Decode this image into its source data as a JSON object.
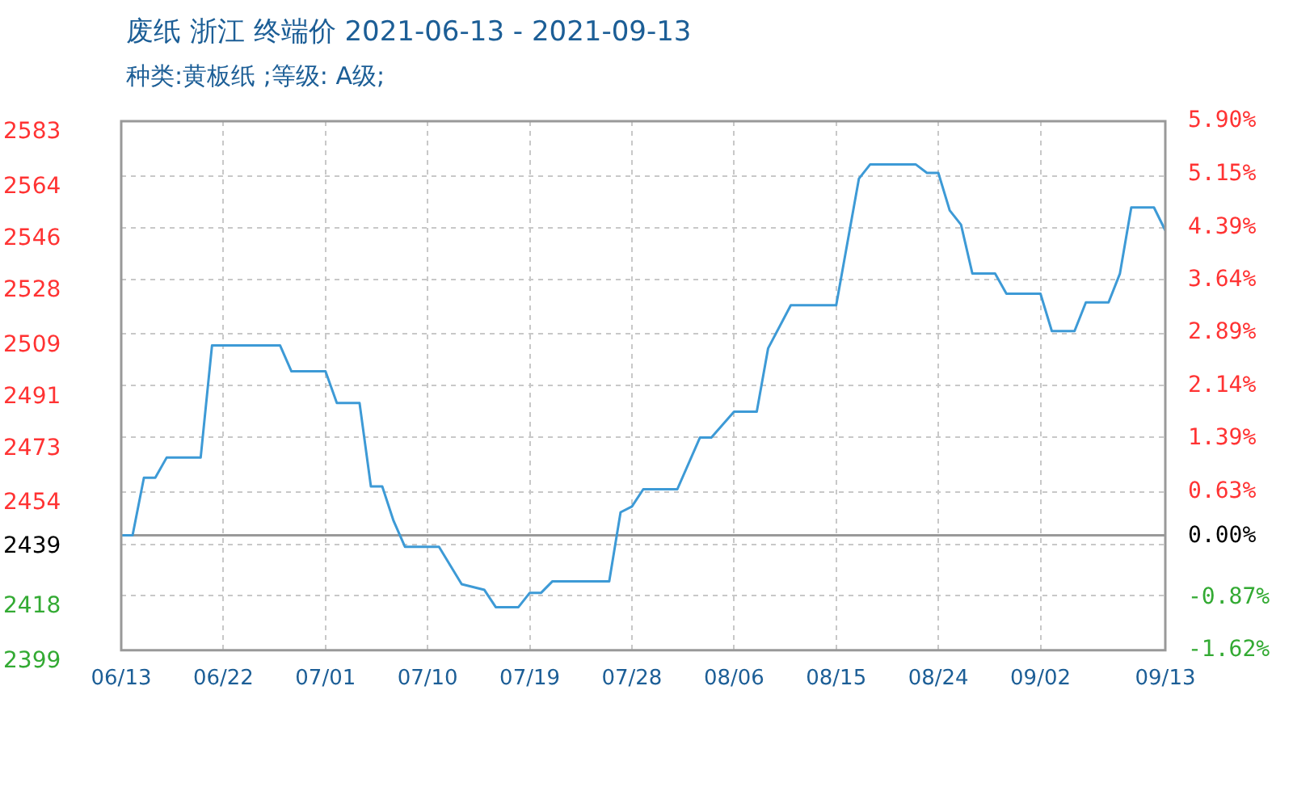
{
  "chart_data": {
    "type": "line",
    "title": "废纸 浙江 终端价 2021-06-13 - 2021-09-13",
    "subtitle": "种类:黄板纸 ;等级: A级;",
    "x": [
      "2021-06-13",
      "2021-06-14",
      "2021-06-15",
      "2021-06-16",
      "2021-06-17",
      "2021-06-20",
      "2021-06-21",
      "2021-06-27",
      "2021-06-28",
      "2021-07-01",
      "2021-07-02",
      "2021-07-04",
      "2021-07-05",
      "2021-07-06",
      "2021-07-07",
      "2021-07-08",
      "2021-07-11",
      "2021-07-13",
      "2021-07-15",
      "2021-07-16",
      "2021-07-18",
      "2021-07-19",
      "2021-07-20",
      "2021-07-21",
      "2021-07-26",
      "2021-07-27",
      "2021-07-28",
      "2021-07-29",
      "2021-08-01",
      "2021-08-03",
      "2021-08-04",
      "2021-08-06",
      "2021-08-08",
      "2021-08-09",
      "2021-08-11",
      "2021-08-15",
      "2021-08-17",
      "2021-08-18",
      "2021-08-22",
      "2021-08-23",
      "2021-08-24",
      "2021-08-25",
      "2021-08-26",
      "2021-08-27",
      "2021-08-29",
      "2021-08-30",
      "2021-09-02",
      "2021-09-03",
      "2021-09-05",
      "2021-09-06",
      "2021-09-08",
      "2021-09-09",
      "2021-09-10",
      "2021-09-12",
      "2021-09-13"
    ],
    "series": [
      {
        "color": "#3d9ad6",
        "values": [
          2439,
          2439,
          2459,
          2459,
          2466,
          2466,
          2505,
          2505,
          2496,
          2496,
          2485,
          2485,
          2456,
          2456,
          2444,
          2435,
          2435,
          2422,
          2420,
          2414,
          2414,
          2419,
          2419,
          2423,
          2423,
          2447,
          2449,
          2455,
          2455,
          2473,
          2473,
          2482,
          2482,
          2504,
          2519,
          2519,
          2563,
          2568,
          2568,
          2565,
          2565,
          2552,
          2547,
          2530,
          2530,
          2523,
          2523,
          2510,
          2510,
          2520,
          2520,
          2530,
          2553,
          2553,
          2545
        ]
      }
    ],
    "xlim": [
      "2021-06-13",
      "2021-09-13"
    ],
    "xticks": [
      {
        "value": "2021-06-13",
        "label": "06/13"
      },
      {
        "value": "2021-06-22",
        "label": "06/22"
      },
      {
        "value": "2021-07-01",
        "label": "07/01"
      },
      {
        "value": "2021-07-10",
        "label": "07/10"
      },
      {
        "value": "2021-07-19",
        "label": "07/19"
      },
      {
        "value": "2021-07-28",
        "label": "07/28"
      },
      {
        "value": "2021-08-06",
        "label": "08/06"
      },
      {
        "value": "2021-08-15",
        "label": "08/15"
      },
      {
        "value": "2021-08-24",
        "label": "08/24"
      },
      {
        "value": "2021-09-02",
        "label": "09/02"
      },
      {
        "value": "2021-09-13",
        "label": "09/13"
      }
    ],
    "ylim": [
      2399,
      2583
    ],
    "yticks": [
      2399,
      2418,
      {
        "value": 2435.8,
        "label": null
      },
      2439,
      2454,
      2473,
      2491,
      2509,
      2528,
      2546,
      2564,
      2583
    ],
    "y2lim": [
      -1.62,
      5.9
    ],
    "y2ticks": [
      {
        "value": -1.62,
        "label": "-1.62%"
      },
      {
        "value": -0.87,
        "label": "-0.87%"
      },
      {
        "value": 0,
        "label": "0.00%"
      },
      {
        "value": 0.63,
        "label": "0.63%"
      },
      {
        "value": 1.39,
        "label": "1.39%"
      },
      {
        "value": 2.14,
        "label": "2.14%"
      },
      {
        "value": 2.89,
        "label": "2.89%"
      },
      {
        "value": 3.64,
        "label": "3.64%"
      },
      {
        "value": 4.39,
        "label": "4.39%"
      },
      {
        "value": 5.15,
        "label": "5.15%"
      },
      {
        "value": 5.9,
        "label": "5.90%"
      }
    ],
    "ref_lines": [
      {
        "axis": "y",
        "value": 2439,
        "color": "#999999"
      }
    ],
    "grid": true,
    "legend": false,
    "marker": "none",
    "line_style": "solid"
  }
}
